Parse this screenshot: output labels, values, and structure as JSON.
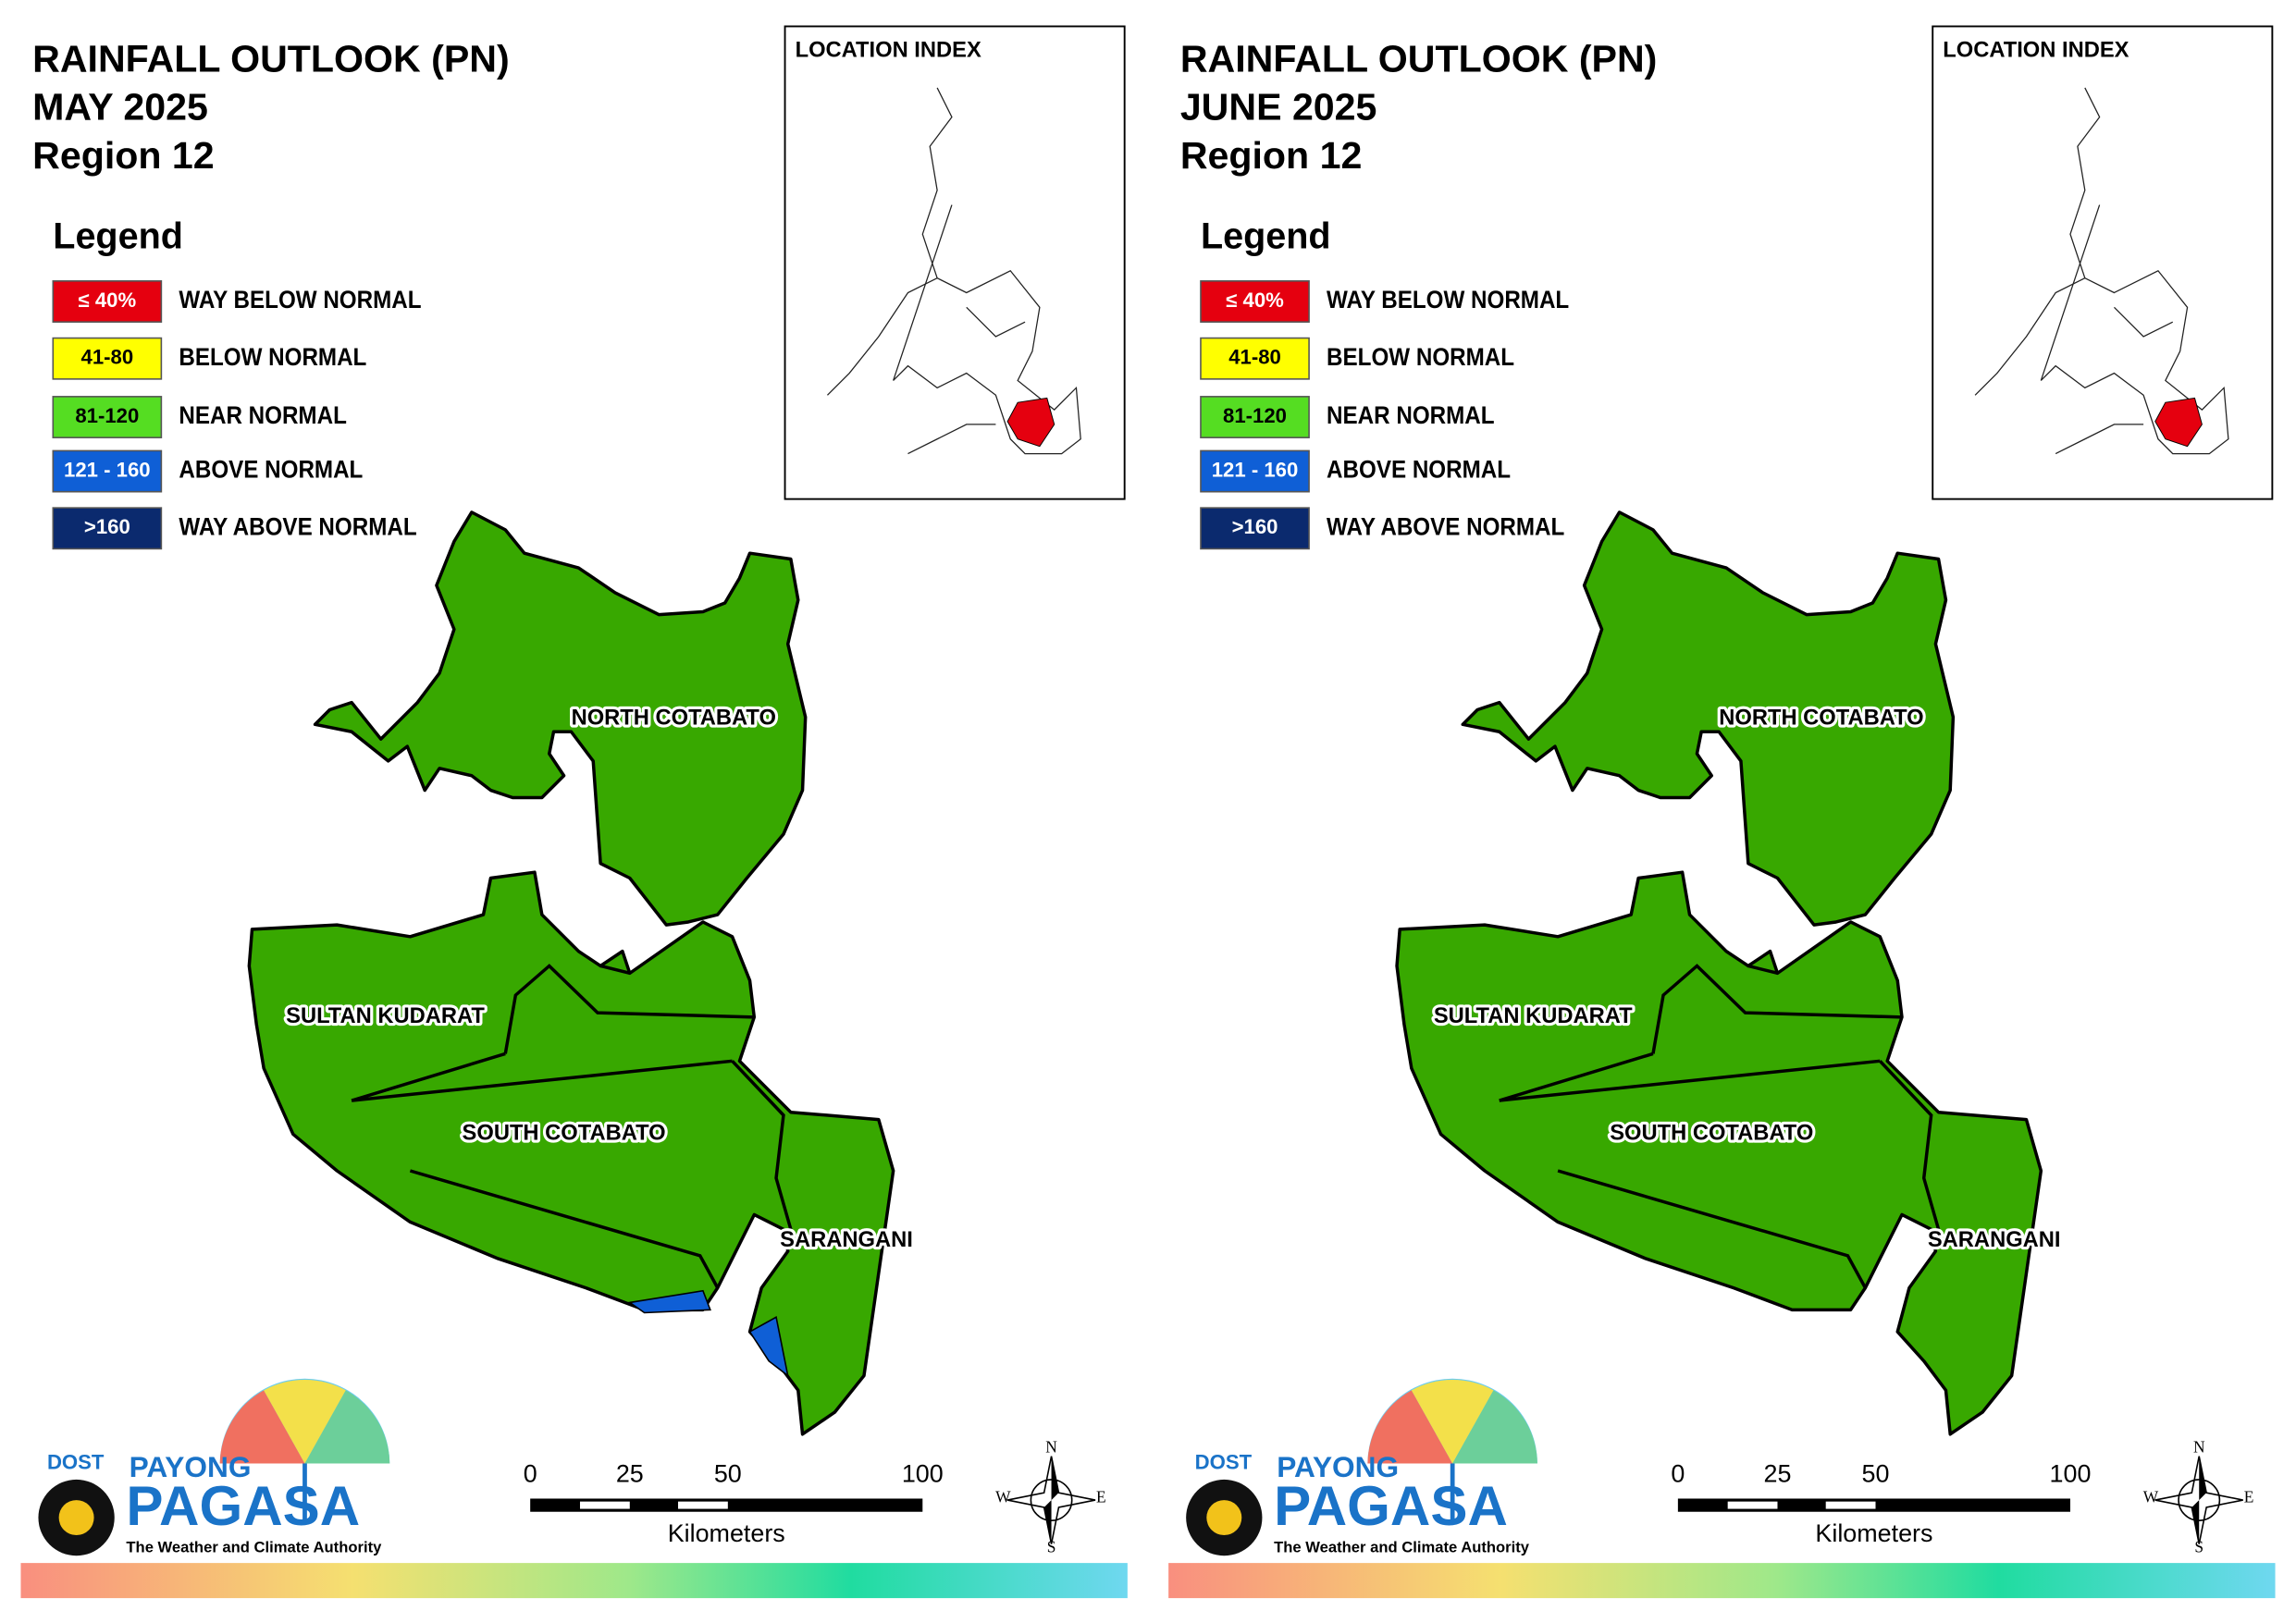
{
  "panels": [
    {
      "title": [
        "RAINFALL OUTLOOK (PN)",
        "MAY 2025",
        "Region 12"
      ],
      "inset_title": "LOCATION INDEX",
      "legend_title": "Legend",
      "legend": [
        {
          "range": "≤ 40%",
          "label": "WAY BELOW NORMAL",
          "color": "#e5000f"
        },
        {
          "range": "41-80",
          "label": "BELOW NORMAL",
          "color": "#ffff00"
        },
        {
          "range": "81-120",
          "label": "NEAR NORMAL",
          "color": "#55dd22"
        },
        {
          "range": "121 - 160",
          "label": "ABOVE NORMAL",
          "color": "#0f5fd6"
        },
        {
          "range": ">160",
          "label": "WAY ABOVE NORMAL",
          "color": "#0b2a6e"
        }
      ],
      "provinces": [
        "NORTH COTABATO",
        "SULTAN KUDARAT",
        "SOUTH COTABATO",
        "SARANGANI"
      ],
      "scale": {
        "ticks": [
          0,
          25,
          50,
          100
        ],
        "unit": "Kilometers"
      },
      "compass": [
        "N",
        "E",
        "S",
        "W"
      ],
      "logo": {
        "agency": "DOST",
        "brand": "PAYONG",
        "name": "PAGASA",
        "tagline": "The Weather and Climate Authority"
      }
    },
    {
      "title": [
        "RAINFALL OUTLOOK (PN)",
        "JUNE 2025",
        "Region 12"
      ],
      "inset_title": "LOCATION INDEX",
      "legend_title": "Legend",
      "legend": [
        {
          "range": "≤ 40%",
          "label": "WAY BELOW NORMAL",
          "color": "#e5000f"
        },
        {
          "range": "41-80",
          "label": "BELOW NORMAL",
          "color": "#ffff00"
        },
        {
          "range": "81-120",
          "label": "NEAR NORMAL",
          "color": "#55dd22"
        },
        {
          "range": "121 - 160",
          "label": "ABOVE NORMAL",
          "color": "#0f5fd6"
        },
        {
          "range": ">160",
          "label": "WAY ABOVE NORMAL",
          "color": "#0b2a6e"
        }
      ],
      "provinces": [
        "NORTH COTABATO",
        "SULTAN KUDARAT",
        "SOUTH COTABATO",
        "SARANGANI"
      ],
      "scale": {
        "ticks": [
          0,
          25,
          50,
          100
        ],
        "unit": "Kilometers"
      },
      "compass": [
        "N",
        "E",
        "S",
        "W"
      ],
      "logo": {
        "agency": "DOST",
        "brand": "PAYONG",
        "name": "PAGASA",
        "tagline": "The Weather and Climate Authority"
      }
    }
  ]
}
